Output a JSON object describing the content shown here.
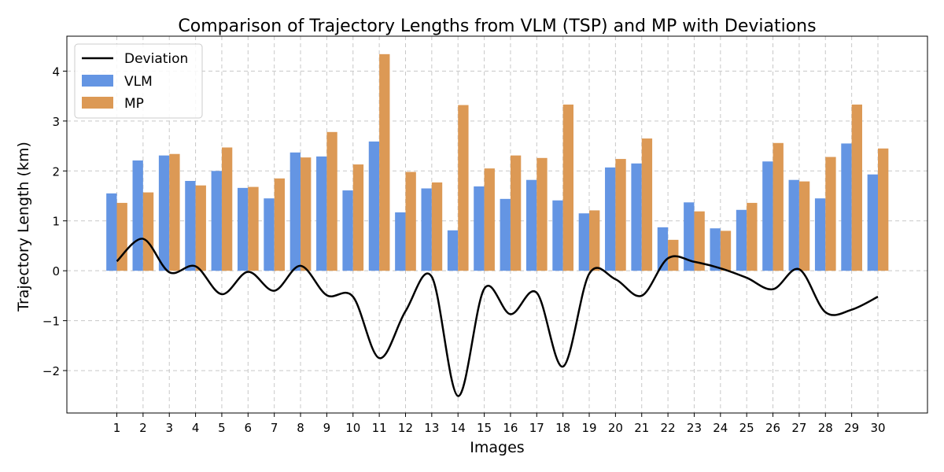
{
  "chart_data": {
    "type": "bar",
    "title": "Comparison of Trajectory Lengths from VLM (TSP) and MP with Deviations",
    "xlabel": "Images",
    "ylabel": "Trajectory Length (km)",
    "categories": [
      "1",
      "2",
      "3",
      "4",
      "5",
      "6",
      "7",
      "8",
      "9",
      "10",
      "11",
      "12",
      "13",
      "14",
      "15",
      "16",
      "17",
      "18",
      "19",
      "20",
      "21",
      "22",
      "23",
      "24",
      "25",
      "26",
      "27",
      "28",
      "29",
      "30"
    ],
    "ylim": [
      -2.85,
      4.7
    ],
    "yticks": [
      -2,
      -1,
      0,
      1,
      2,
      3,
      4
    ],
    "ytick_labels": [
      "−2",
      "−1",
      "0",
      "1",
      "2",
      "3",
      "4"
    ],
    "grid": true,
    "legend_position": "top-left",
    "series": [
      {
        "name": "VLM",
        "color": "#6495e3",
        "values": [
          1.55,
          2.21,
          2.31,
          1.8,
          2.0,
          1.66,
          1.45,
          2.37,
          2.29,
          1.61,
          2.59,
          1.17,
          1.65,
          0.81,
          1.69,
          1.44,
          1.82,
          1.41,
          1.15,
          2.07,
          2.15,
          0.87,
          1.37,
          0.85,
          1.22,
          2.19,
          1.82,
          1.45,
          2.55,
          1.93
        ]
      },
      {
        "name": "MP",
        "color": "#dc9955",
        "values": [
          1.36,
          1.57,
          2.34,
          1.71,
          2.47,
          1.68,
          1.85,
          2.27,
          2.78,
          2.13,
          4.34,
          1.98,
          1.77,
          3.32,
          2.05,
          2.31,
          2.26,
          3.33,
          1.21,
          2.24,
          2.65,
          0.62,
          1.19,
          0.8,
          1.36,
          2.56,
          1.79,
          2.28,
          3.33,
          2.45
        ]
      },
      {
        "name": "Deviation",
        "type": "line",
        "color": "#000000",
        "values": [
          0.19,
          0.64,
          -0.03,
          0.09,
          -0.47,
          -0.02,
          -0.4,
          0.1,
          -0.49,
          -0.52,
          -1.75,
          -0.81,
          -0.12,
          -2.51,
          -0.36,
          -0.87,
          -0.44,
          -1.92,
          -0.06,
          -0.17,
          -0.5,
          0.25,
          0.18,
          0.05,
          -0.14,
          -0.37,
          0.03,
          -0.83,
          -0.78,
          -0.52
        ]
      }
    ]
  }
}
